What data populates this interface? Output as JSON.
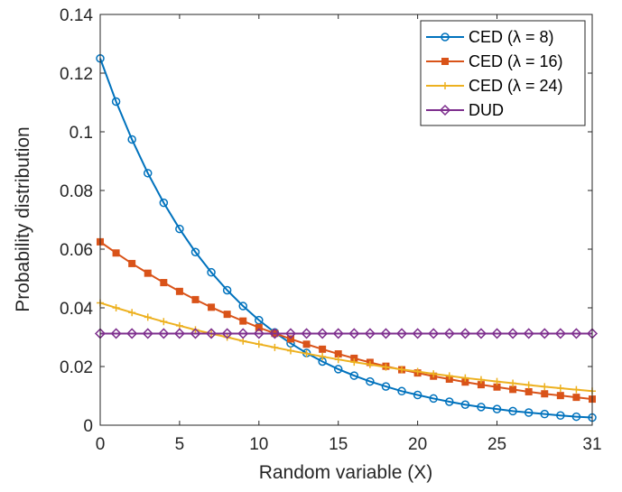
{
  "chart_data": {
    "type": "line",
    "title": "",
    "xlabel": "Random variable (X)",
    "ylabel": "Probability distribution",
    "xlim": [
      0,
      31
    ],
    "ylim": [
      0,
      0.14
    ],
    "x_ticks": [
      0,
      5,
      10,
      15,
      20,
      25,
      31
    ],
    "x_tick_labels": [
      "0",
      "5",
      "10",
      "15",
      "20",
      "25",
      "31"
    ],
    "y_ticks": [
      0,
      0.02,
      0.04,
      0.06,
      0.08,
      0.1,
      0.12,
      0.14
    ],
    "y_tick_labels": [
      "0",
      "0.02",
      "0.04",
      "0.06",
      "0.08",
      "0.1",
      "0.12",
      "0.14"
    ],
    "grid": false,
    "legend_position": "top-right",
    "x": [
      0,
      1,
      2,
      3,
      4,
      5,
      6,
      7,
      8,
      9,
      10,
      11,
      12,
      13,
      14,
      15,
      16,
      17,
      18,
      19,
      20,
      21,
      22,
      23,
      24,
      25,
      26,
      27,
      28,
      29,
      30,
      31
    ],
    "series": [
      {
        "name": "CED (λ = 8)",
        "color": "#0072BD",
        "marker": "circle",
        "values": [
          0.125,
          0.1103,
          0.0974,
          0.0859,
          0.0758,
          0.0669,
          0.059,
          0.0521,
          0.046,
          0.0406,
          0.0358,
          0.0316,
          0.0279,
          0.0246,
          0.0217,
          0.0191,
          0.0169,
          0.0149,
          0.0132,
          0.0116,
          0.0103,
          0.0091,
          0.008,
          0.007,
          0.0062,
          0.0055,
          0.0048,
          0.0043,
          0.0038,
          0.0033,
          0.0029,
          0.0026
        ]
      },
      {
        "name": "CED (λ = 16)",
        "color": "#D95319",
        "marker": "square",
        "values": [
          0.0625,
          0.0587,
          0.0551,
          0.0518,
          0.0486,
          0.0456,
          0.0428,
          0.0402,
          0.0378,
          0.0355,
          0.0333,
          0.0313,
          0.0294,
          0.0276,
          0.0259,
          0.0243,
          0.0228,
          0.0214,
          0.0201,
          0.0189,
          0.0178,
          0.0167,
          0.0157,
          0.0147,
          0.0138,
          0.013,
          0.0122,
          0.0114,
          0.0107,
          0.0101,
          0.0095,
          0.0089
        ]
      },
      {
        "name": "CED (λ = 24)",
        "color": "#EDB120",
        "marker": "plus",
        "values": [
          0.0417,
          0.04,
          0.0384,
          0.0368,
          0.0353,
          0.0339,
          0.0325,
          0.0312,
          0.03,
          0.0287,
          0.0276,
          0.0265,
          0.0254,
          0.0244,
          0.0234,
          0.0224,
          0.0215,
          0.0207,
          0.0198,
          0.019,
          0.0183,
          0.0175,
          0.0168,
          0.0161,
          0.0155,
          0.0149,
          0.0143,
          0.0137,
          0.0131,
          0.0126,
          0.0121,
          0.0116
        ]
      },
      {
        "name": "DUD",
        "color": "#7E2F8E",
        "marker": "diamond",
        "values": [
          0.03125,
          0.03125,
          0.03125,
          0.03125,
          0.03125,
          0.03125,
          0.03125,
          0.03125,
          0.03125,
          0.03125,
          0.03125,
          0.03125,
          0.03125,
          0.03125,
          0.03125,
          0.03125,
          0.03125,
          0.03125,
          0.03125,
          0.03125,
          0.03125,
          0.03125,
          0.03125,
          0.03125,
          0.03125,
          0.03125,
          0.03125,
          0.03125,
          0.03125,
          0.03125,
          0.03125,
          0.03125
        ]
      }
    ]
  }
}
